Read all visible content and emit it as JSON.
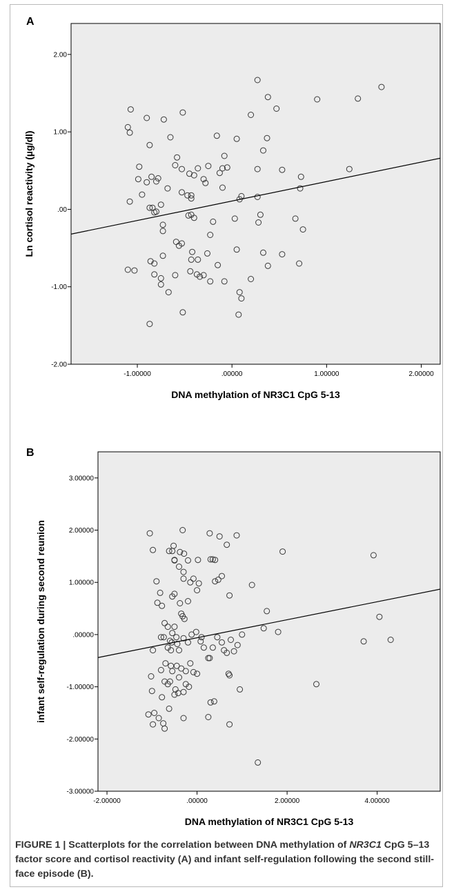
{
  "figure": {
    "caption": {
      "lead": "FIGURE 1 | Scatterplots for the correlation between DNA methylation of ",
      "gene": "NR3C1",
      "rest": " CpG 5–13 factor score and cortisol reactivity (A) and infant self-regulation following the second still-face episode (B)",
      "end": "."
    }
  },
  "chart_data": [
    {
      "type": "scatter",
      "panel_label": "A",
      "xlabel": "DNA methylation of NR3C1 CpG 5-13",
      "ylabel": "Ln cortisol reactivity (µg/dl)",
      "xlim": [
        -1.7,
        2.2
      ],
      "ylim": [
        -2.0,
        2.4
      ],
      "x_ticks": [
        -1.0,
        0.0,
        1.0,
        2.0
      ],
      "x_tick_labels": [
        "-1.00000",
        ".00000",
        "1.00000",
        "2.00000"
      ],
      "y_ticks": [
        -2.0,
        -1.0,
        0.0,
        1.0,
        2.0
      ],
      "y_tick_labels": [
        "-2.00",
        "-1.00",
        ".00",
        "1.00",
        "2.00"
      ],
      "grid": false,
      "fit_line": {
        "x": [
          -1.7,
          2.2
        ],
        "y": [
          -0.32,
          0.66
        ]
      },
      "points": [
        [
          -1.07,
          1.29
        ],
        [
          -1.1,
          1.06
        ],
        [
          -1.08,
          0.99
        ],
        [
          -0.9,
          1.18
        ],
        [
          -0.72,
          1.16
        ],
        [
          -0.52,
          1.25
        ],
        [
          -0.87,
          0.83
        ],
        [
          -0.65,
          0.93
        ],
        [
          -0.98,
          0.55
        ],
        [
          -0.58,
          0.67
        ],
        [
          -0.85,
          0.42
        ],
        [
          -0.78,
          0.4
        ],
        [
          -0.99,
          0.39
        ],
        [
          -0.9,
          0.35
        ],
        [
          -0.8,
          0.36
        ],
        [
          -0.6,
          0.57
        ],
        [
          -0.53,
          0.52
        ],
        [
          -0.45,
          0.46
        ],
        [
          -0.43,
          0.18
        ],
        [
          -0.53,
          0.22
        ],
        [
          -0.47,
          0.18
        ],
        [
          -0.43,
          0.14
        ],
        [
          -0.68,
          0.27
        ],
        [
          -0.95,
          0.19
        ],
        [
          -1.08,
          0.1
        ],
        [
          -0.75,
          0.06
        ],
        [
          -0.87,
          0.02
        ],
        [
          -0.84,
          0.02
        ],
        [
          -0.82,
          -0.04
        ],
        [
          -0.8,
          -0.03
        ],
        [
          -0.73,
          -0.2
        ],
        [
          -0.73,
          -0.28
        ],
        [
          -0.46,
          -0.08
        ],
        [
          -0.43,
          -0.07
        ],
        [
          -0.4,
          -0.11
        ],
        [
          -0.59,
          -0.42
        ],
        [
          -0.53,
          -0.44
        ],
        [
          -0.56,
          -0.47
        ],
        [
          -0.73,
          -0.6
        ],
        [
          -0.86,
          -0.67
        ],
        [
          -0.82,
          -0.7
        ],
        [
          -0.82,
          -0.84
        ],
        [
          -0.75,
          -0.89
        ],
        [
          -0.75,
          -0.97
        ],
        [
          -0.67,
          -1.07
        ],
        [
          -0.6,
          -0.85
        ],
        [
          -0.42,
          -0.55
        ],
        [
          -0.43,
          -0.65
        ],
        [
          -0.36,
          -0.65
        ],
        [
          -0.44,
          -0.8
        ],
        [
          -0.37,
          -0.84
        ],
        [
          -0.34,
          -0.87
        ],
        [
          -0.3,
          -0.85
        ],
        [
          -0.26,
          -0.57
        ],
        [
          -0.23,
          -0.33
        ],
        [
          -0.2,
          -0.16
        ],
        [
          -0.23,
          -0.93
        ],
        [
          -0.15,
          -0.72
        ],
        [
          -0.13,
          0.47
        ],
        [
          -0.1,
          0.53
        ],
        [
          -0.08,
          0.69
        ],
        [
          -0.3,
          0.39
        ],
        [
          -0.28,
          0.34
        ],
        [
          -0.25,
          0.56
        ],
        [
          -0.36,
          0.53
        ],
        [
          -0.4,
          0.44
        ],
        [
          -0.16,
          0.95
        ],
        [
          -0.1,
          0.28
        ],
        [
          -0.05,
          0.54
        ],
        [
          0.05,
          0.91
        ],
        [
          0.08,
          0.13
        ],
        [
          0.1,
          0.17
        ],
        [
          0.03,
          -0.12
        ],
        [
          0.05,
          -0.52
        ],
        [
          -0.08,
          -0.93
        ],
        [
          0.08,
          -1.07
        ],
        [
          0.1,
          -1.15
        ],
        [
          0.07,
          -1.36
        ],
        [
          0.2,
          -0.9
        ],
        [
          0.27,
          1.67
        ],
        [
          0.2,
          1.22
        ],
        [
          0.27,
          0.52
        ],
        [
          0.27,
          0.16
        ],
        [
          0.28,
          -0.17
        ],
        [
          0.3,
          -0.07
        ],
        [
          0.33,
          0.76
        ],
        [
          0.37,
          0.92
        ],
        [
          0.33,
          -0.56
        ],
        [
          0.38,
          -0.73
        ],
        [
          0.38,
          1.45
        ],
        [
          0.47,
          1.3
        ],
        [
          0.53,
          0.51
        ],
        [
          0.53,
          -0.58
        ],
        [
          0.67,
          -0.12
        ],
        [
          0.71,
          -0.7
        ],
        [
          0.72,
          0.27
        ],
        [
          0.73,
          0.42
        ],
        [
          0.75,
          -0.26
        ],
        [
          0.9,
          1.42
        ],
        [
          1.24,
          0.52
        ],
        [
          1.33,
          1.43
        ],
        [
          1.58,
          1.58
        ],
        [
          -0.52,
          -1.33
        ],
        [
          -0.87,
          -1.48
        ],
        [
          -1.1,
          -0.78
        ],
        [
          -1.03,
          -0.79
        ]
      ]
    },
    {
      "type": "scatter",
      "panel_label": "B",
      "xlabel": "DNA methylation of NR3C1 CpG 5-13",
      "ylabel": "infant self-regulation during second reunion",
      "xlim": [
        -2.2,
        5.4
      ],
      "ylim": [
        -3.0,
        3.5
      ],
      "x_ticks": [
        -2.0,
        0.0,
        2.0,
        4.0
      ],
      "x_tick_labels": [
        "-2.00000",
        ".00000",
        "2.00000",
        "4.00000"
      ],
      "y_ticks": [
        -3.0,
        -2.0,
        -1.0,
        0.0,
        1.0,
        2.0,
        3.0
      ],
      "y_tick_labels": [
        "-3.00000",
        "-2.00000",
        "-1.00000",
        ".00000",
        "1.00000",
        "2.00000",
        "3.00000"
      ],
      "grid": false,
      "fit_line": {
        "x": [
          -2.2,
          5.4
        ],
        "y": [
          -0.44,
          0.87
        ]
      },
      "points": [
        [
          -1.05,
          1.94
        ],
        [
          -0.98,
          1.62
        ],
        [
          -0.9,
          1.02
        ],
        [
          -0.82,
          0.8
        ],
        [
          -0.88,
          0.61
        ],
        [
          -0.78,
          0.55
        ],
        [
          -0.52,
          1.7
        ],
        [
          -0.55,
          1.6
        ],
        [
          -0.38,
          1.58
        ],
        [
          -0.29,
          1.55
        ],
        [
          -0.32,
          2.0
        ],
        [
          -0.5,
          1.43
        ],
        [
          -0.5,
          1.42
        ],
        [
          -0.62,
          1.6
        ],
        [
          -0.4,
          1.3
        ],
        [
          -0.2,
          1.42
        ],
        [
          -0.3,
          1.2
        ],
        [
          -0.3,
          1.07
        ],
        [
          -0.15,
          1.0
        ],
        [
          0.02,
          1.43
        ],
        [
          -0.08,
          1.07
        ],
        [
          0.28,
          1.94
        ],
        [
          0.5,
          1.88
        ],
        [
          0.88,
          1.9
        ],
        [
          0.3,
          1.44
        ],
        [
          0.35,
          1.44
        ],
        [
          0.4,
          1.43
        ],
        [
          0.66,
          1.72
        ],
        [
          0.55,
          1.12
        ],
        [
          0.47,
          1.05
        ],
        [
          0.4,
          1.02
        ],
        [
          0.04,
          0.98
        ],
        [
          -0.5,
          0.78
        ],
        [
          -0.55,
          0.73
        ],
        [
          -0.38,
          0.6
        ],
        [
          -0.35,
          0.4
        ],
        [
          -0.32,
          0.35
        ],
        [
          -0.28,
          0.3
        ],
        [
          0.0,
          0.85
        ],
        [
          -0.2,
          0.64
        ],
        [
          -0.72,
          0.22
        ],
        [
          -0.65,
          0.15
        ],
        [
          -0.6,
          -0.12
        ],
        [
          -0.56,
          -0.15
        ],
        [
          -0.55,
          0.03
        ],
        [
          -0.5,
          0.15
        ],
        [
          -0.46,
          -0.05
        ],
        [
          -0.44,
          -0.18
        ],
        [
          -0.8,
          -0.05
        ],
        [
          -0.74,
          -0.05
        ],
        [
          -0.65,
          -0.25
        ],
        [
          -0.58,
          -0.3
        ],
        [
          -0.4,
          -0.3
        ],
        [
          -0.3,
          -0.07
        ],
        [
          -0.2,
          -0.15
        ],
        [
          -0.12,
          0.0
        ],
        [
          -0.02,
          0.05
        ],
        [
          0.08,
          -0.13
        ],
        [
          0.1,
          -0.05
        ],
        [
          0.15,
          -0.25
        ],
        [
          0.25,
          -0.45
        ],
        [
          0.28,
          -0.45
        ],
        [
          0.35,
          -0.25
        ],
        [
          0.45,
          -0.05
        ],
        [
          0.55,
          -0.15
        ],
        [
          0.6,
          -0.3
        ],
        [
          0.66,
          -0.35
        ],
        [
          0.7,
          -0.75
        ],
        [
          0.72,
          -0.78
        ],
        [
          0.75,
          -0.1
        ],
        [
          0.82,
          -0.32
        ],
        [
          0.9,
          -0.2
        ],
        [
          0.72,
          0.75
        ],
        [
          0.95,
          -1.05
        ],
        [
          1.0,
          0.0
        ],
        [
          1.22,
          0.95
        ],
        [
          1.48,
          0.12
        ],
        [
          1.55,
          0.45
        ],
        [
          1.8,
          0.05
        ],
        [
          1.9,
          1.59
        ],
        [
          -0.98,
          -0.3
        ],
        [
          -1.02,
          -0.8
        ],
        [
          -1.0,
          -1.08
        ],
        [
          -0.95,
          -1.5
        ],
        [
          -1.08,
          -1.53
        ],
        [
          -0.98,
          -1.72
        ],
        [
          -0.85,
          -1.6
        ],
        [
          -0.75,
          -1.7
        ],
        [
          -0.72,
          -1.8
        ],
        [
          -0.62,
          -1.42
        ],
        [
          -0.78,
          -1.2
        ],
        [
          -0.72,
          -0.9
        ],
        [
          -0.65,
          -0.95
        ],
        [
          -0.7,
          -0.55
        ],
        [
          -0.58,
          -0.6
        ],
        [
          -0.55,
          -0.7
        ],
        [
          -0.45,
          -0.6
        ],
        [
          -0.4,
          -0.82
        ],
        [
          -0.35,
          -0.65
        ],
        [
          -0.48,
          -1.05
        ],
        [
          -0.5,
          -1.15
        ],
        [
          -0.42,
          -1.12
        ],
        [
          -0.3,
          -1.1
        ],
        [
          -0.18,
          -1.0
        ],
        [
          -0.25,
          -0.7
        ],
        [
          -0.15,
          -0.55
        ],
        [
          -0.08,
          -0.72
        ],
        [
          0.0,
          -0.75
        ],
        [
          -0.3,
          -1.6
        ],
        [
          0.25,
          -1.58
        ],
        [
          0.3,
          -1.3
        ],
        [
          0.38,
          -1.28
        ],
        [
          0.72,
          -1.72
        ],
        [
          1.35,
          -2.45
        ],
        [
          2.65,
          -0.95
        ],
        [
          3.7,
          -0.13
        ],
        [
          3.92,
          1.52
        ],
        [
          4.05,
          0.34
        ],
        [
          4.3,
          -0.1
        ],
        [
          -0.8,
          -0.68
        ],
        [
          -0.6,
          -0.9
        ],
        [
          -0.25,
          -0.95
        ]
      ]
    }
  ]
}
